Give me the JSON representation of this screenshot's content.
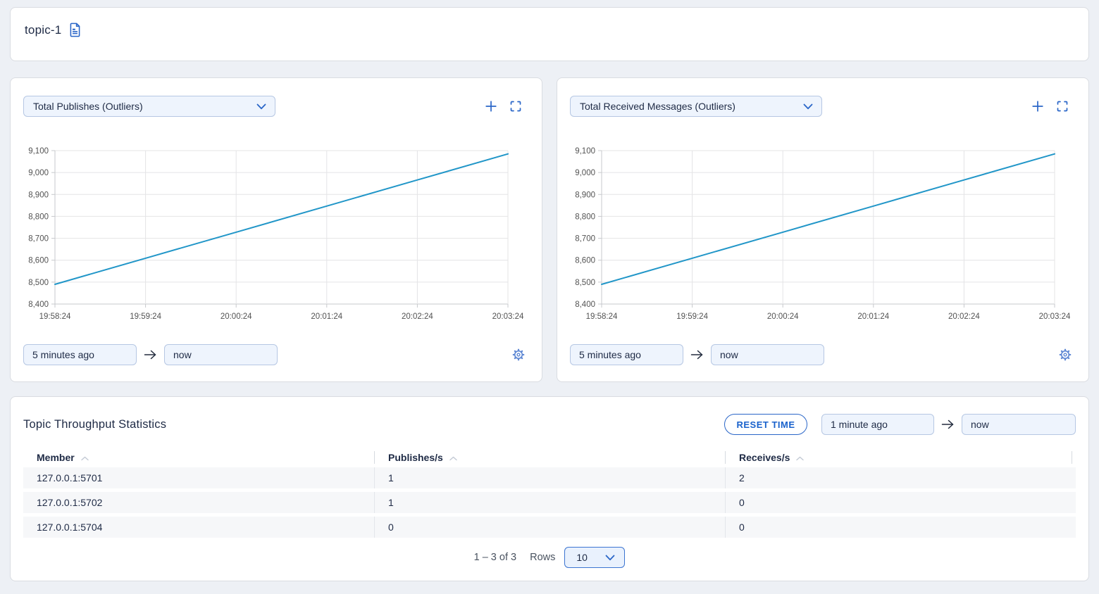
{
  "topic_header": {
    "title": "topic-1"
  },
  "charts": [
    {
      "metric_label": "Total Publishes (Outliers)",
      "from_value": "5 minutes ago",
      "to_value": "now"
    },
    {
      "metric_label": "Total Received Messages (Outliers)",
      "from_value": "5 minutes ago",
      "to_value": "now"
    }
  ],
  "chart_data": [
    {
      "type": "line",
      "title": "Total Publishes (Outliers)",
      "x": [
        "19:58:24",
        "19:59:24",
        "20:00:24",
        "20:01:24",
        "20:02:24",
        "20:03:24"
      ],
      "values": [
        8490,
        8609,
        8728,
        8847,
        8966,
        9085
      ],
      "ylim": [
        8400,
        9100
      ],
      "ytick_step": 100,
      "xlabel": "",
      "ylabel": "",
      "grid": true,
      "legend": "none",
      "line_color": "#2196c8"
    },
    {
      "type": "line",
      "title": "Total Received Messages (Outliers)",
      "x": [
        "19:58:24",
        "19:59:24",
        "20:00:24",
        "20:01:24",
        "20:02:24",
        "20:03:24"
      ],
      "values": [
        8490,
        8609,
        8728,
        8847,
        8966,
        9085
      ],
      "ylim": [
        8400,
        9100
      ],
      "ytick_step": 100,
      "xlabel": "",
      "ylabel": "",
      "grid": true,
      "legend": "none",
      "line_color": "#2196c8"
    }
  ],
  "stats_table": {
    "title": "Topic Throughput Statistics",
    "reset_button_label": "RESET TIME",
    "from_value": "1 minute ago",
    "to_value": "now",
    "columns": [
      "Member",
      "Publishes/s",
      "Receives/s"
    ],
    "rows": [
      [
        "127.0.0.1:5701",
        "1",
        "2"
      ],
      [
        "127.0.0.1:5702",
        "1",
        "0"
      ],
      [
        "127.0.0.1:5704",
        "0",
        "0"
      ]
    ],
    "pagination": {
      "range": "1 – 3 of 3",
      "rows_label": "Rows",
      "rows_per_page": "10"
    }
  },
  "colors": {
    "accent_blue": "#2a66c8",
    "line_blue": "#2196c8",
    "input_bg": "#eef4fd",
    "page_bg": "#edf0f5"
  }
}
